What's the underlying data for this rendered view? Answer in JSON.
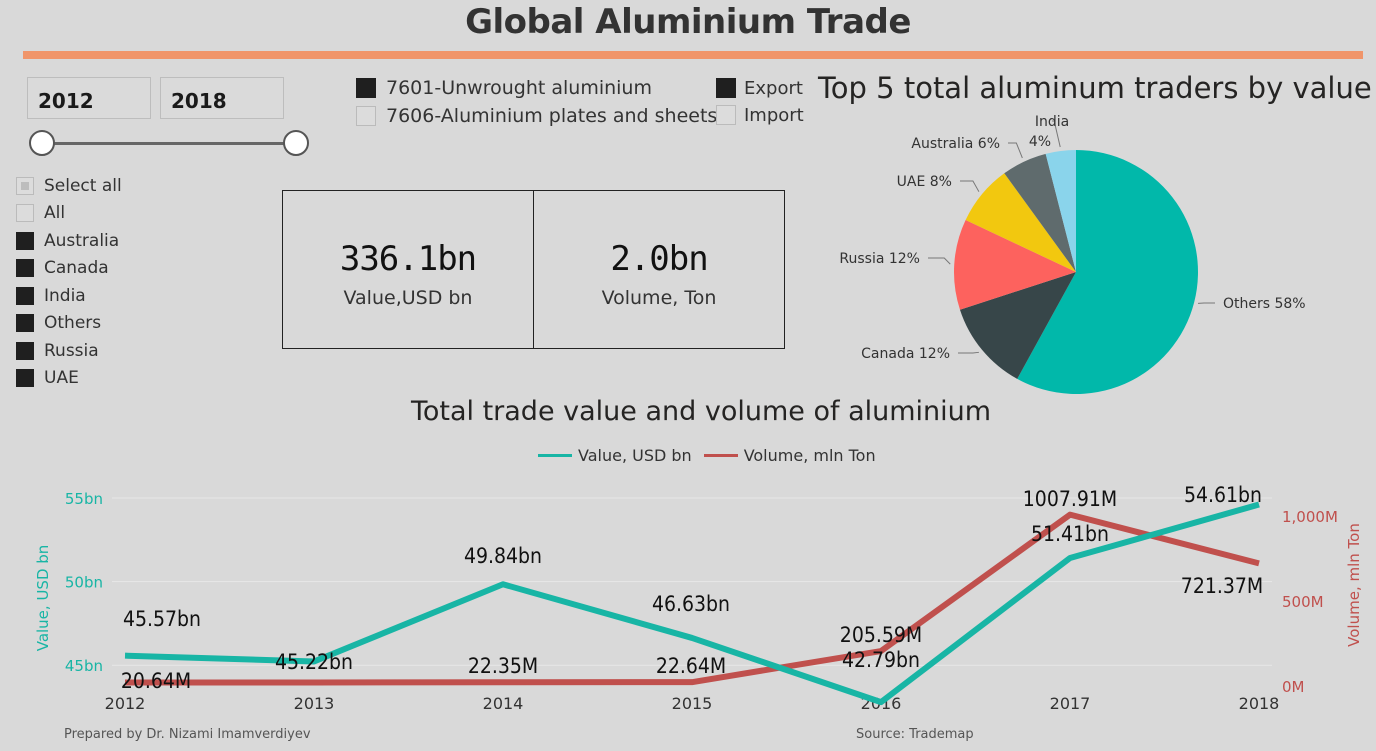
{
  "title": "Global Aluminium Trade",
  "colors": {
    "accent_bar": "#f0956a",
    "value_line": "#18b5a5",
    "volume_line": "#c0504d"
  },
  "year_slicer": {
    "start": "2012",
    "end": "2018"
  },
  "country_filter": {
    "select_all": "Select all",
    "items": [
      {
        "label": "All",
        "checked": false
      },
      {
        "label": "Australia",
        "checked": true
      },
      {
        "label": "Canada",
        "checked": true
      },
      {
        "label": "India",
        "checked": true
      },
      {
        "label": "Others",
        "checked": true
      },
      {
        "label": "Russia",
        "checked": true
      },
      {
        "label": "UAE",
        "checked": true
      }
    ]
  },
  "product_filter": [
    {
      "label": "7601-Unwrought aluminium",
      "checked": true
    },
    {
      "label": "7606-Aluminium plates and sheets",
      "checked": false
    }
  ],
  "flow_filter": [
    {
      "label": "Export",
      "checked": true
    },
    {
      "label": "Import",
      "checked": false
    }
  ],
  "cards": [
    {
      "value": "336.1bn",
      "label": "Value,USD bn"
    },
    {
      "value": "2.0bn",
      "label": "Volume, Ton"
    }
  ],
  "footer": {
    "left": "Prepared by Dr. Nizami Imamverdiyev",
    "right": "Source: Trademap"
  },
  "chart_data": [
    {
      "type": "pie",
      "title": "Top 5 total aluminum traders by value",
      "slices": [
        {
          "label": "Others",
          "value": 58,
          "text": "Others 58%",
          "color": "#01b8aa"
        },
        {
          "label": "Canada",
          "value": 12,
          "text": "Canada 12%",
          "color": "#374649"
        },
        {
          "label": "Russia",
          "value": 12,
          "text": "Russia 12%",
          "color": "#fd625e"
        },
        {
          "label": "UAE",
          "value": 8,
          "text": "UAE 8%",
          "color": "#f2c80f"
        },
        {
          "label": "Australia",
          "value": 6,
          "text": "Australia  6%",
          "color": "#5f6b6d"
        },
        {
          "label": "India",
          "value": 4,
          "text": "India 4%",
          "color": "#8ad4eb"
        }
      ]
    },
    {
      "type": "line",
      "title": "Total trade value and volume of aluminium",
      "x": [
        "2012",
        "2013",
        "2014",
        "2015",
        "2016",
        "2017",
        "2018"
      ],
      "series": [
        {
          "name": "Value, USD bn",
          "axis": "left",
          "values": [
            45.57,
            45.22,
            49.84,
            46.63,
            42.79,
            51.41,
            54.61
          ],
          "labels": [
            "45.57bn",
            "45.22bn",
            "49.84bn",
            "46.63bn",
            "42.79bn",
            "51.41bn",
            "54.61bn"
          ]
        },
        {
          "name": "Volume, mln Ton",
          "axis": "right",
          "values": [
            20.64,
            20.64,
            22.35,
            22.64,
            205.59,
            1007.91,
            721.37
          ],
          "labels": [
            "20.64M",
            "",
            "22.35M",
            "22.64M",
            "205.59M",
            "1007.91M",
            "721.37M"
          ]
        }
      ],
      "y_left": {
        "label": "Value, USD bn",
        "ticks": [
          "45bn",
          "50bn",
          "55bn"
        ],
        "tick_values": [
          45,
          50,
          55
        ],
        "range": [
          42.2,
          55
        ]
      },
      "y_right": {
        "label": "Volume, mln Ton",
        "ticks": [
          "0M",
          "500M",
          "1,000M"
        ],
        "tick_values": [
          0,
          500,
          1000
        ],
        "range": [
          0,
          1100
        ]
      },
      "grid": true,
      "legend": "top-center"
    }
  ]
}
